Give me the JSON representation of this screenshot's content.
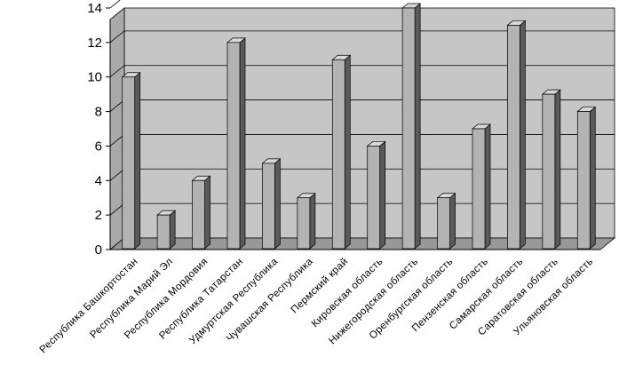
{
  "chart_data": {
    "type": "bar",
    "categories": [
      "Республика Башкортостан",
      "Республика Марий Эл",
      "Республика Мордовия",
      "Республика Татарстан",
      "Удмуртская Республика",
      "Чувашская Республика",
      "Пермский край",
      "Кировская область",
      "Нижегородская область",
      "Оренбургская область",
      "Пензенская область",
      "Самарская область",
      "Саратовская область",
      "Ульяновская область"
    ],
    "values": [
      10,
      2,
      4,
      12,
      5,
      3,
      11,
      6,
      14,
      3,
      7,
      13,
      9,
      8
    ],
    "yticks": [
      "0",
      "2",
      "4",
      "6",
      "8",
      "10",
      "12",
      "14"
    ],
    "ylim": [
      0,
      14
    ],
    "grid": true,
    "style": "3d",
    "colors": {
      "bar_front": "#b3b3b3",
      "bar_side": "#5a5a5a",
      "bar_top": "#d8d8d8",
      "wall": "#c6c6c6",
      "floor": "#989898",
      "gridline": "#000000"
    }
  }
}
